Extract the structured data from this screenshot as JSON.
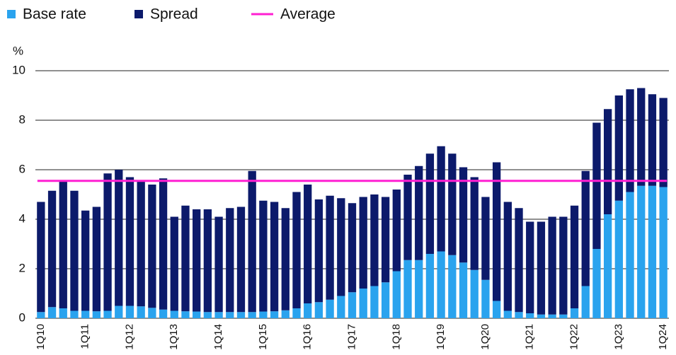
{
  "chart_data": {
    "type": "stacked_bar",
    "y_label": "%",
    "categories": [
      "1Q10",
      null,
      null,
      null,
      "1Q11",
      null,
      null,
      null,
      "1Q12",
      null,
      null,
      null,
      "1Q13",
      null,
      null,
      null,
      "1Q14",
      null,
      null,
      null,
      "1Q15",
      null,
      null,
      null,
      "1Q16",
      null,
      null,
      null,
      "1Q17",
      null,
      null,
      null,
      "1Q18",
      null,
      null,
      null,
      "1Q19",
      null,
      null,
      null,
      "1Q20",
      null,
      null,
      null,
      "1Q21",
      null,
      null,
      null,
      "1Q22",
      null,
      null,
      null,
      "1Q23",
      null,
      null,
      null,
      "1Q24"
    ],
    "series": [
      {
        "name": "Base rate",
        "color": "#2aa3ee",
        "values": [
          0.25,
          0.45,
          0.4,
          0.3,
          0.3,
          0.28,
          0.3,
          0.5,
          0.5,
          0.48,
          0.42,
          0.35,
          0.3,
          0.28,
          0.27,
          0.25,
          0.25,
          0.25,
          0.25,
          0.25,
          0.27,
          0.28,
          0.32,
          0.4,
          0.6,
          0.65,
          0.75,
          0.9,
          1.05,
          1.2,
          1.3,
          1.45,
          1.9,
          2.35,
          2.35,
          2.6,
          2.7,
          2.55,
          2.25,
          1.95,
          1.55,
          0.7,
          0.3,
          0.25,
          0.2,
          0.15,
          0.15,
          0.15,
          0.4,
          1.3,
          2.8,
          4.2,
          4.75,
          5.1,
          5.35,
          5.35,
          5.3
        ]
      },
      {
        "name": "Spread",
        "color": "#0c1a6b",
        "values": [
          4.45,
          4.7,
          5.15,
          4.85,
          4.05,
          4.22,
          5.55,
          5.5,
          5.2,
          5.07,
          4.98,
          5.3,
          3.8,
          4.27,
          4.13,
          4.15,
          3.85,
          4.2,
          4.25,
          5.7,
          4.48,
          4.42,
          4.13,
          4.7,
          4.8,
          4.15,
          4.2,
          3.95,
          3.6,
          3.7,
          3.7,
          3.45,
          3.3,
          3.45,
          3.8,
          4.05,
          4.25,
          4.1,
          3.85,
          3.75,
          3.35,
          5.6,
          4.4,
          4.2,
          3.7,
          3.75,
          3.95,
          3.95,
          4.15,
          4.65,
          5.1,
          4.25,
          4.25,
          4.15,
          3.95,
          3.7,
          3.6
        ]
      }
    ],
    "average": {
      "name": "Average",
      "color": "#ff1fd2",
      "value": 5.55
    },
    "ylim": [
      0,
      10
    ],
    "yticks": [
      0,
      2,
      4,
      6,
      8,
      10
    ],
    "grid": true
  }
}
